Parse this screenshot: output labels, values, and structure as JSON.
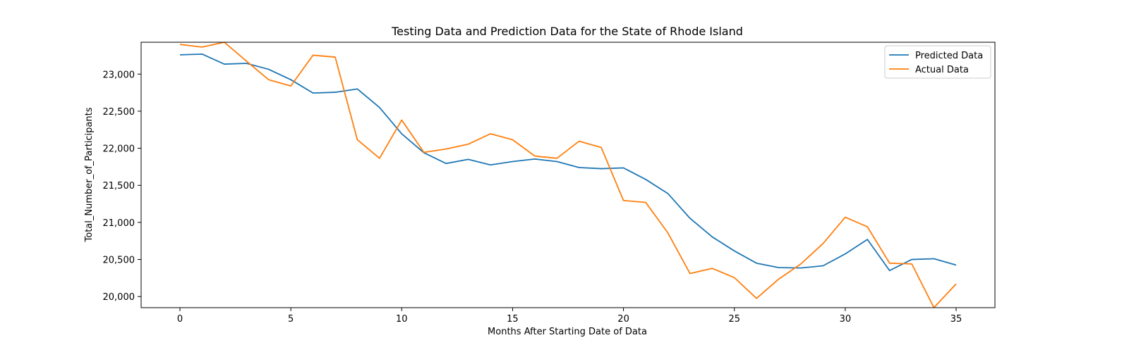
{
  "chart_data": {
    "type": "line",
    "title": "Testing Data and Prediction Data for the State of Rhode Island",
    "xlabel": "Months After Starting Date of Data",
    "ylabel": "Total_Number_of_Participants",
    "xlim": [
      -1.75,
      36.75
    ],
    "ylim": [
      19850,
      23430
    ],
    "x_ticks": [
      0,
      5,
      10,
      15,
      20,
      25,
      30,
      35
    ],
    "x_tick_labels": [
      "0",
      "5",
      "10",
      "15",
      "20",
      "25",
      "30",
      "35"
    ],
    "y_ticks": [
      20000,
      20500,
      21000,
      21500,
      22000,
      22500,
      23000
    ],
    "y_tick_labels": [
      "20,000",
      "20,500",
      "21,000",
      "21,500",
      "22,000",
      "22,500",
      "23,000"
    ],
    "grid": false,
    "legend_position": "top-right",
    "x": [
      0,
      1,
      2,
      3,
      4,
      5,
      6,
      7,
      8,
      9,
      10,
      11,
      12,
      13,
      14,
      15,
      16,
      17,
      18,
      19,
      20,
      21,
      22,
      23,
      24,
      25,
      26,
      27,
      28,
      29,
      30,
      31,
      32,
      33,
      34,
      35
    ],
    "series": [
      {
        "name": "Predicted Data",
        "color": "#1f77b4",
        "values": [
          23260,
          23270,
          23135,
          23145,
          23065,
          22925,
          22745,
          22755,
          22800,
          22550,
          22195,
          21940,
          21795,
          21850,
          21775,
          21820,
          21855,
          21820,
          21740,
          21725,
          21735,
          21580,
          21390,
          21055,
          20805,
          20615,
          20450,
          20390,
          20385,
          20415,
          20575,
          20770,
          20350,
          20500,
          20510,
          20425
        ]
      },
      {
        "name": "Actual Data",
        "color": "#ff7f0e",
        "values": [
          23400,
          23365,
          23430,
          23175,
          22925,
          22840,
          23255,
          23230,
          22115,
          21865,
          22380,
          21945,
          21990,
          22055,
          22195,
          22115,
          21895,
          21865,
          22095,
          22010,
          21295,
          21270,
          20860,
          20310,
          20380,
          20255,
          19975,
          20235,
          20440,
          20715,
          21070,
          20940,
          20450,
          20440,
          19850,
          20170
        ]
      }
    ]
  }
}
